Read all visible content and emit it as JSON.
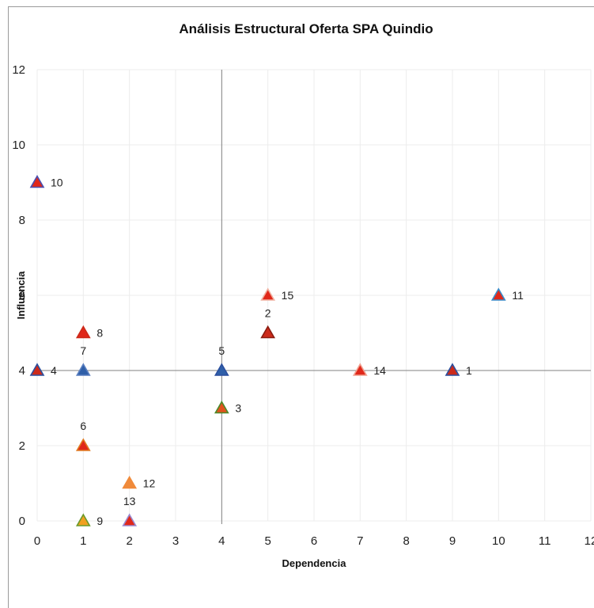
{
  "chart_data": {
    "type": "scatter",
    "title": "Análisis Estructural Oferta SPA Quindio",
    "xlabel": "Dependencia",
    "ylabel": "Influencia",
    "xlim": [
      0,
      12
    ],
    "ylim": [
      0,
      12
    ],
    "x_ticks": [
      "0",
      "1",
      "2",
      "3",
      "4",
      "5",
      "6",
      "7",
      "8",
      "9",
      "10",
      "11",
      "12"
    ],
    "y_ticks": [
      "0",
      "2",
      "4",
      "6",
      "8",
      "10",
      "12"
    ],
    "grid": true,
    "quadrant_lines": {
      "x": 4,
      "y": 4
    },
    "marker": "triangle",
    "points": [
      {
        "label": "1",
        "x": 9,
        "y": 4,
        "fill": "#cc2a1a",
        "edge": "#2b4f9e",
        "label_pos": "right"
      },
      {
        "label": "2",
        "x": 5,
        "y": 5,
        "fill": "#cc2a1a",
        "edge": "#8a1c10",
        "label_pos": "above"
      },
      {
        "label": "3",
        "x": 4,
        "y": 3,
        "fill": "#e0531e",
        "edge": "#4a8a2a",
        "label_pos": "right"
      },
      {
        "label": "4",
        "x": 0,
        "y": 4,
        "fill": "#cc2a1a",
        "edge": "#2b4f9e",
        "label_pos": "right"
      },
      {
        "label": "5",
        "x": 4,
        "y": 4,
        "fill": "#2f5fa8",
        "edge": "#2b4f9e",
        "label_pos": "above"
      },
      {
        "label": "6",
        "x": 1,
        "y": 2,
        "fill": "#e0281a",
        "edge": "#e07a20",
        "label_pos": "above"
      },
      {
        "label": "7",
        "x": 1,
        "y": 4,
        "fill": "#2f5fa8",
        "edge": "#5a7fc0",
        "label_pos": "above"
      },
      {
        "label": "8",
        "x": 1,
        "y": 5,
        "fill": "#e0281a",
        "edge": "#cc2a1a",
        "label_pos": "right"
      },
      {
        "label": "9",
        "x": 1,
        "y": 0,
        "fill": "#f0a020",
        "edge": "#6a9a2a",
        "label_pos": "right"
      },
      {
        "label": "10",
        "x": 0,
        "y": 9,
        "fill": "#e0281a",
        "edge": "#4a4fb0",
        "label_pos": "right"
      },
      {
        "label": "11",
        "x": 10,
        "y": 6,
        "fill": "#e0281a",
        "edge": "#3a8ac8",
        "label_pos": "right"
      },
      {
        "label": "12",
        "x": 2,
        "y": 1,
        "fill": "#f08a3a",
        "edge": "#f08a3a",
        "label_pos": "right"
      },
      {
        "label": "13",
        "x": 2,
        "y": 0,
        "fill": "#e0281a",
        "edge": "#9a8ad0",
        "label_pos": "above"
      },
      {
        "label": "14",
        "x": 7,
        "y": 4,
        "fill": "#e0281a",
        "edge": "#f0a090",
        "label_pos": "right"
      },
      {
        "label": "15",
        "x": 5,
        "y": 6,
        "fill": "#e0281a",
        "edge": "#f0b0a0",
        "label_pos": "right"
      }
    ]
  }
}
